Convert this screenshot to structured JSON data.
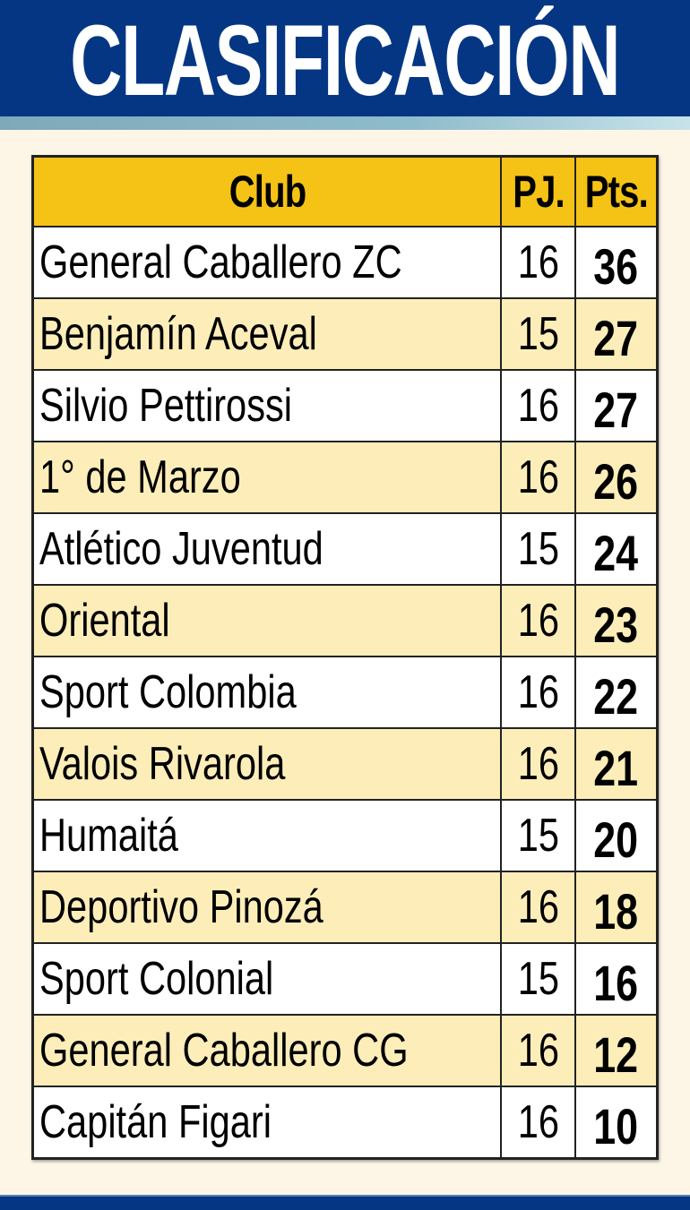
{
  "title": "CLASIFICACIÓN",
  "colors": {
    "banner": "#053683",
    "header_row": "#f5c315",
    "alt_row": "#fdeeb9",
    "background": "#fdf6e6"
  },
  "table": {
    "headers": {
      "club": "Club",
      "pj": "PJ.",
      "pts": "Pts."
    },
    "rows": [
      {
        "club": "General Caballero ZC",
        "pj": "16",
        "pts": "36"
      },
      {
        "club": "Benjamín Aceval",
        "pj": "15",
        "pts": "27"
      },
      {
        "club": "Silvio Pettirossi",
        "pj": "16",
        "pts": "27"
      },
      {
        "club": "1° de Marzo",
        "pj": "16",
        "pts": "26"
      },
      {
        "club": "Atlético Juventud",
        "pj": "15",
        "pts": "24"
      },
      {
        "club": "Oriental",
        "pj": "16",
        "pts": "23"
      },
      {
        "club": "Sport Colombia",
        "pj": "16",
        "pts": "22"
      },
      {
        "club": "Valois Rivarola",
        "pj": "16",
        "pts": "21"
      },
      {
        "club": "Humaitá",
        "pj": "15",
        "pts": "20"
      },
      {
        "club": "Deportivo Pinozá",
        "pj": "16",
        "pts": "18"
      },
      {
        "club": "Sport Colonial",
        "pj": "15",
        "pts": "16"
      },
      {
        "club": "General Caballero CG",
        "pj": "16",
        "pts": "12"
      },
      {
        "club": "Capitán Figari",
        "pj": "16",
        "pts": "10"
      }
    ]
  }
}
